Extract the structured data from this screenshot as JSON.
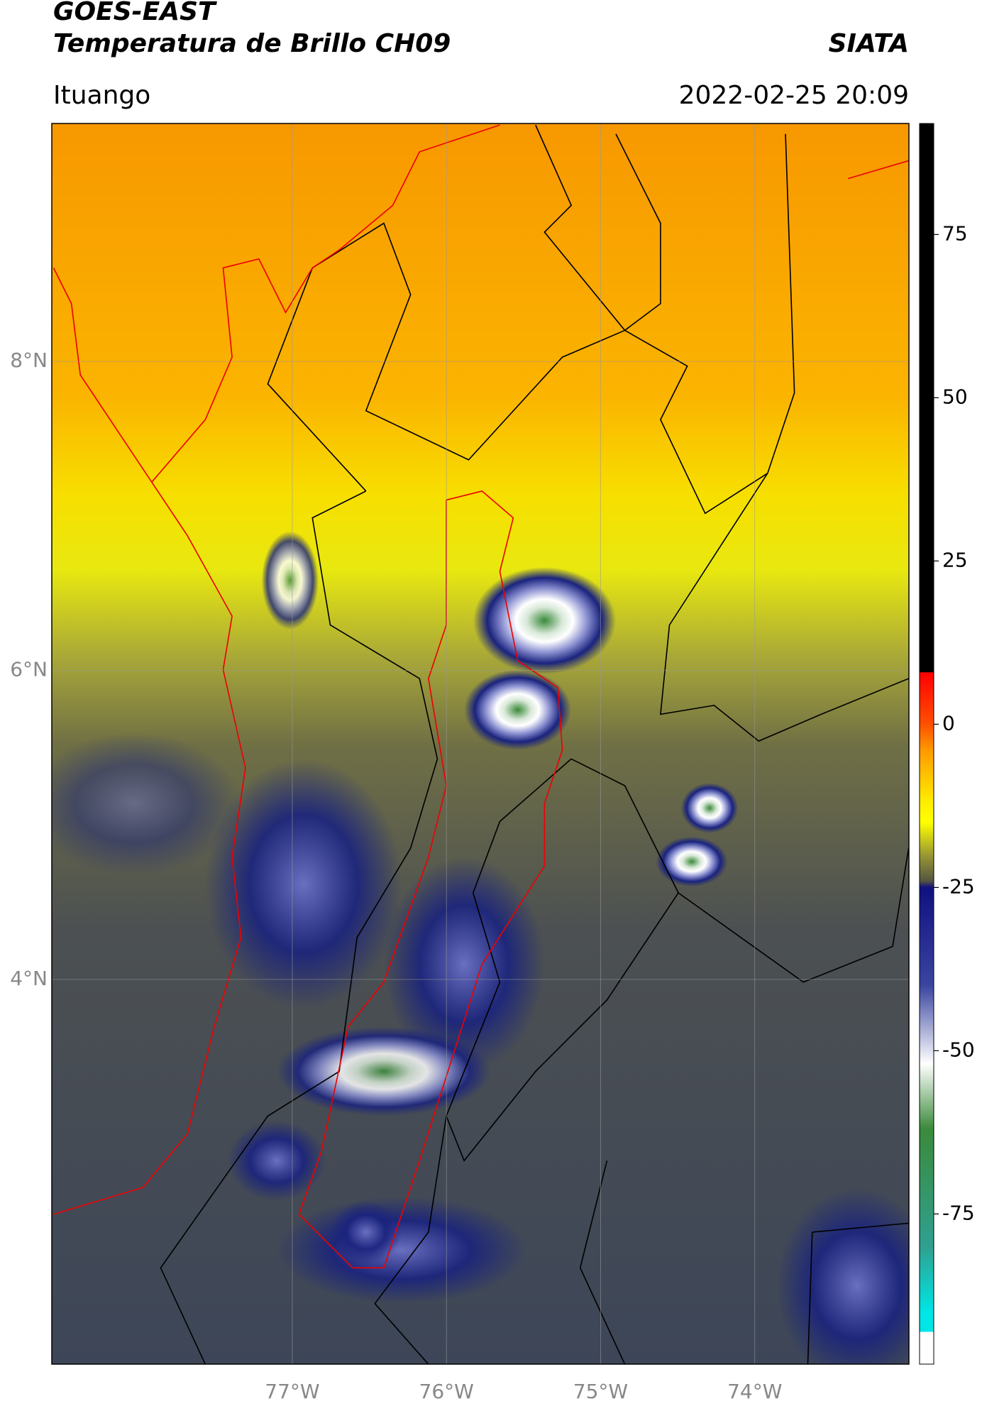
{
  "header": {
    "satellite": "GOES-EAST",
    "product": "Temperatura de Brillo CH09",
    "agency": "SIATA",
    "region": "Ituango",
    "datetime": "2022-02-25 20:09"
  },
  "map": {
    "lonlim": [
      -78.56,
      -73.0
    ],
    "latlim": [
      1.51,
      9.54
    ],
    "lon_ticks": [
      {
        "value": -77,
        "label": "77°W"
      },
      {
        "value": -76,
        "label": "76°W"
      },
      {
        "value": -75,
        "label": "75°W"
      },
      {
        "value": -74,
        "label": "74°W"
      }
    ],
    "lat_ticks": [
      {
        "value": 8,
        "label": "8°N"
      },
      {
        "value": 6,
        "label": "6°N"
      },
      {
        "value": 4,
        "label": "4°N"
      }
    ]
  },
  "colorbar": {
    "lim": [
      -98,
      92
    ],
    "ticks": [
      75,
      50,
      25,
      0,
      -25,
      -50,
      -75
    ],
    "stops": [
      [
        92,
        "#000000"
      ],
      [
        8,
        "#000000"
      ],
      [
        7.9,
        "#ff0000"
      ],
      [
        0,
        "#ff5000"
      ],
      [
        -4,
        "#ff9a00"
      ],
      [
        -12,
        "#ffee00"
      ],
      [
        -15,
        "#ffff00"
      ],
      [
        -20,
        "#999933"
      ],
      [
        -24,
        "#555540"
      ],
      [
        -25,
        "#101080"
      ],
      [
        -40,
        "#3a45a0"
      ],
      [
        -52,
        "#ffffff"
      ],
      [
        -62,
        "#3a8a3a"
      ],
      [
        -80,
        "#30a090"
      ],
      [
        -90,
        "#00e5e5"
      ],
      [
        -93,
        "#00e5e5"
      ],
      [
        -93.1,
        "#ffffff"
      ],
      [
        -98,
        "#ffffff"
      ]
    ]
  }
}
